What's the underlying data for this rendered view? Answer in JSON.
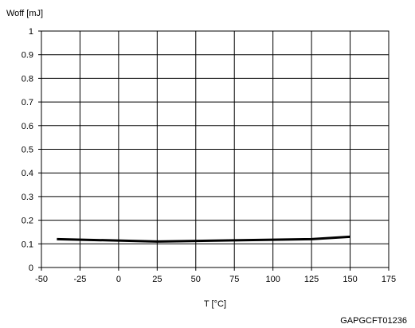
{
  "chart_data": {
    "type": "line",
    "title": "",
    "ylabel": "Woff [mJ]",
    "xlabel": "T [°C]",
    "xlim": [
      -50,
      175
    ],
    "ylim": [
      0,
      1
    ],
    "x_ticks": [
      "-50",
      "-25",
      "0",
      "25",
      "50",
      "75",
      "100",
      "125",
      "150",
      "175"
    ],
    "y_ticks": [
      "0",
      "0.1",
      "0.2",
      "0.3",
      "0.4",
      "0.5",
      "0.6",
      "0.7",
      "0.8",
      "0.9",
      "1"
    ],
    "grid": true,
    "series": [
      {
        "color": "#000000",
        "x": [
          -40,
          25,
          125,
          150
        ],
        "y": [
          0.12,
          0.11,
          0.12,
          0.13
        ]
      }
    ],
    "annotation": "GAPGCFT01236"
  }
}
